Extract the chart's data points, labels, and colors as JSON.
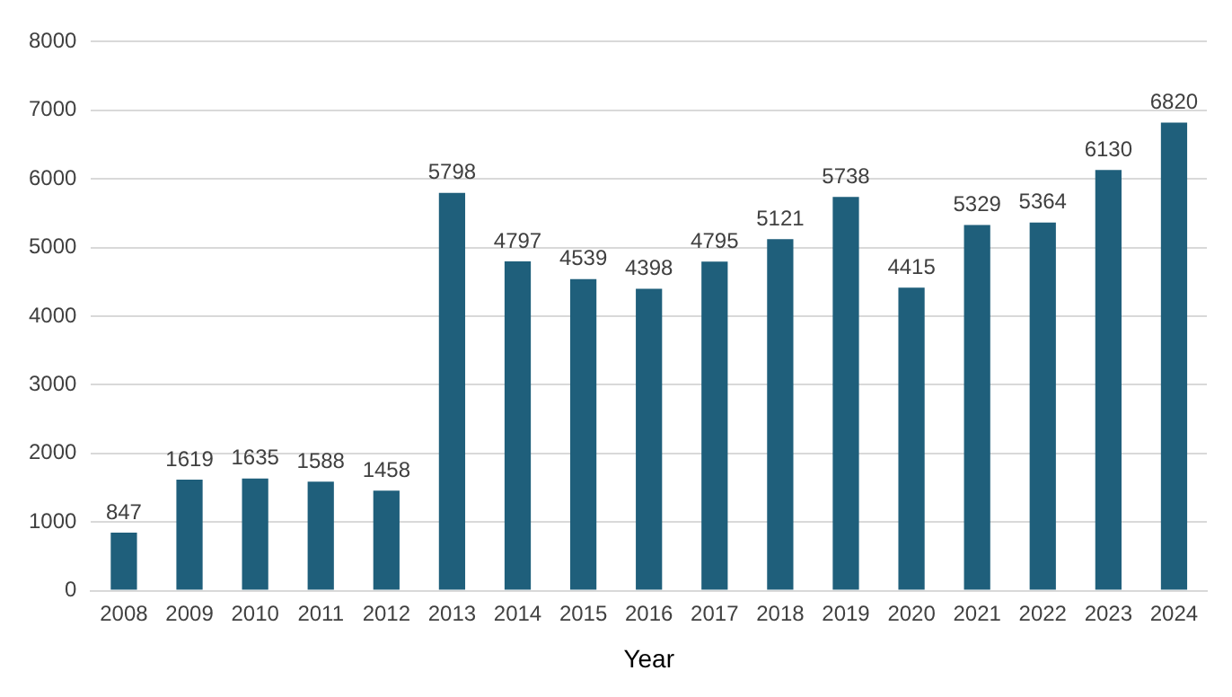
{
  "chart_data": {
    "type": "bar",
    "xlabel": "Year",
    "categories": [
      "2008",
      "2009",
      "2010",
      "2011",
      "2012",
      "2013",
      "2014",
      "2015",
      "2016",
      "2017",
      "2018",
      "2019",
      "2020",
      "2021",
      "2022",
      "2023",
      "2024"
    ],
    "values": [
      847,
      1619,
      1635,
      1588,
      1458,
      5798,
      4797,
      4539,
      4398,
      4795,
      5121,
      5738,
      4415,
      5329,
      5364,
      6130,
      6820
    ],
    "color": "#1f5f7b",
    "ylim": [
      0,
      8000
    ],
    "yticks": [
      0,
      1000,
      2000,
      3000,
      4000,
      5000,
      6000,
      7000,
      8000
    ],
    "grid": "y",
    "data_labels": true,
    "legend": false
  }
}
